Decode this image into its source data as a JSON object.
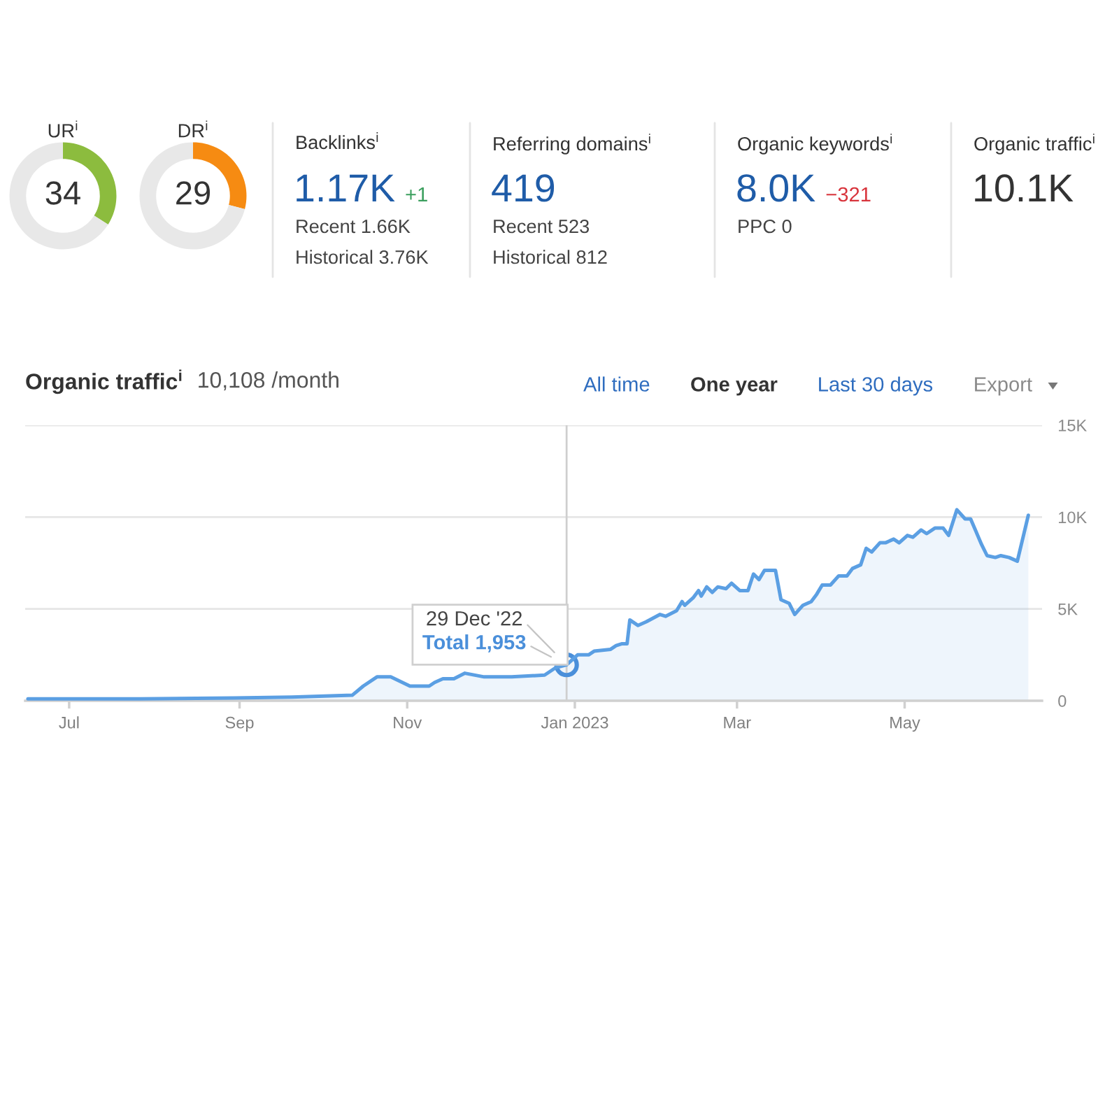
{
  "chart_data": [
    {
      "type": "donut",
      "title": "UR$^{i}$",
      "categories": [
        null,
        null
      ],
      "values": [
        34,
        66
      ],
      "colors": [
        "#8cbc3e",
        "#e8e8e8"
      ],
      "value_labels": [
        "34",
        null
      ]
    },
    {
      "type": "donut",
      "title": "DR$^{i}$",
      "categories": [
        null,
        null
      ],
      "values": [
        29,
        71
      ],
      "colors": [
        "#f68b12",
        "#e8e8e8"
      ],
      "value_labels": [
        "29",
        null
      ]
    },
    {
      "type": "other",
      "title": "Backlinks$^{i}$",
      "subtitle": "1.17K",
      "color": "#1f5ca8",
      "values": [
        1
      ],
      "value_labels": [
        "+1"
      ],
      "colors": [
        "#3b9f5e"
      ],
      "annotations": [
        "Recent 1.66K",
        "Historical 3.76K"
      ]
    },
    {
      "type": "other",
      "title": "Referring domains$^{i}$",
      "subtitle": "419",
      "color": "#1f5ca8",
      "annotations": [
        "Recent 523",
        "Historical 812"
      ]
    },
    {
      "type": "other",
      "title": "Organic keywords$^{i}$",
      "subtitle": "8.0K",
      "color": "#1f5ca8",
      "values": [
        -321
      ],
      "value_labels": [
        "−321"
      ],
      "colors": [
        "#d8343c"
      ],
      "annotations": [
        "PPC 0"
      ]
    },
    {
      "type": "other",
      "title": "Organic traffic$^{i}$",
      "subtitle": "10.1K",
      "color": "#333333"
    },
    {
      "type": "area",
      "title": "Organic traffic$^{i}$",
      "subtitle": "10,108 /month",
      "xlim": [
        "2022-06-15",
        "2023-06-20"
      ],
      "xticks": [
        {
          "value": "2022-07-01",
          "label": "Jul"
        },
        {
          "value": "2022-09-01",
          "label": "Sep"
        },
        {
          "value": "2022-11-01",
          "label": "Nov"
        },
        {
          "value": "2023-01-01",
          "label": "Jan 2023"
        },
        {
          "value": "2023-03-01",
          "label": "Mar"
        },
        {
          "value": "2023-05-01",
          "label": "May"
        }
      ],
      "ylim": [
        0,
        15000
      ],
      "yticks": [
        0,
        {
          "value": 5000,
          "label": "5K"
        },
        {
          "value": 10000,
          "label": "10K"
        },
        {
          "value": 15000,
          "label": "15K"
        }
      ],
      "grid": "y",
      "ref_lines": [
        {
          "axis": "x",
          "value": "2022-12-29",
          "color": "#cfcfcf"
        }
      ],
      "series": [
        {
          "color": "#5b9fe3",
          "x": [
            "2022-06-16",
            "2022-07-27",
            "2022-08-30",
            "2022-09-20",
            "2022-10-12",
            "2022-10-16",
            "2022-10-21",
            "2022-10-26",
            "2022-11-02",
            "2022-11-09",
            "2022-11-11",
            "2022-11-14",
            "2022-11-18",
            "2022-11-22",
            "2022-11-29",
            "2022-12-09",
            "2022-12-21",
            "2022-12-25",
            "2022-12-29",
            "2023-01-02",
            "2023-01-06",
            "2023-01-08",
            "2023-01-14",
            "2023-01-16",
            "2023-01-18",
            "2023-01-20",
            "2023-01-21",
            "2023-01-24",
            "2023-01-27",
            "2023-02-01",
            "2023-02-03",
            "2023-02-07",
            "2023-02-09",
            "2023-02-10",
            "2023-02-13",
            "2023-02-15",
            "2023-02-16",
            "2023-02-18",
            "2023-02-20",
            "2023-02-22",
            "2023-02-25",
            "2023-02-27",
            "2023-03-02",
            "2023-03-05",
            "2023-03-07",
            "2023-03-09",
            "2023-03-11",
            "2023-03-15",
            "2023-03-17",
            "2023-03-20",
            "2023-03-22",
            "2023-03-25",
            "2023-03-28",
            "2023-03-30",
            "2023-04-01",
            "2023-04-04",
            "2023-04-07",
            "2023-04-10",
            "2023-04-12",
            "2023-04-15",
            "2023-04-17",
            "2023-04-19",
            "2023-04-22",
            "2023-04-24",
            "2023-04-27",
            "2023-04-29",
            "2023-05-02",
            "2023-05-04",
            "2023-05-07",
            "2023-05-09",
            "2023-05-12",
            "2023-05-15",
            "2023-05-17",
            "2023-05-20",
            "2023-05-23",
            "2023-05-25",
            "2023-05-27",
            "2023-05-29",
            "2023-05-31",
            "2023-06-03",
            "2023-06-05",
            "2023-06-08",
            "2023-06-11",
            "2023-06-15"
          ],
          "values": [
            100,
            100,
            150,
            200,
            300,
            800,
            1300,
            1300,
            800,
            800,
            1000,
            1200,
            1200,
            1500,
            1300,
            1300,
            1400,
            1800,
            1953,
            2500,
            2500,
            2700,
            2800,
            3000,
            3100,
            3100,
            4400,
            4100,
            4300,
            4700,
            4600,
            4900,
            5400,
            5200,
            5600,
            6000,
            5700,
            6200,
            5900,
            6200,
            6100,
            6400,
            6000,
            6000,
            6900,
            6600,
            7100,
            7100,
            5500,
            5300,
            4700,
            5200,
            5400,
            5800,
            6300,
            6300,
            6800,
            6800,
            7200,
            7400,
            8300,
            8100,
            8600,
            8600,
            8800,
            8600,
            9000,
            8900,
            9300,
            9100,
            9400,
            9400,
            9000,
            10400,
            9900,
            9900,
            9200,
            8500,
            7900,
            7800,
            7900,
            7800,
            7600,
            10100
          ]
        },
        {
          "type": "scatter",
          "color": "#4a8fda",
          "x": [
            "2022-12-29"
          ],
          "values": [
            1953
          ]
        }
      ],
      "annotations": [
        "All time",
        "One year",
        "Last 30 days",
        "Export",
        {
          "text": "29 Dec '22",
          "x": "2022-12-29",
          "y": 1953
        },
        {
          "text": "Total 1,953",
          "x": "2022-12-29",
          "y": 1953
        }
      ]
    }
  ]
}
